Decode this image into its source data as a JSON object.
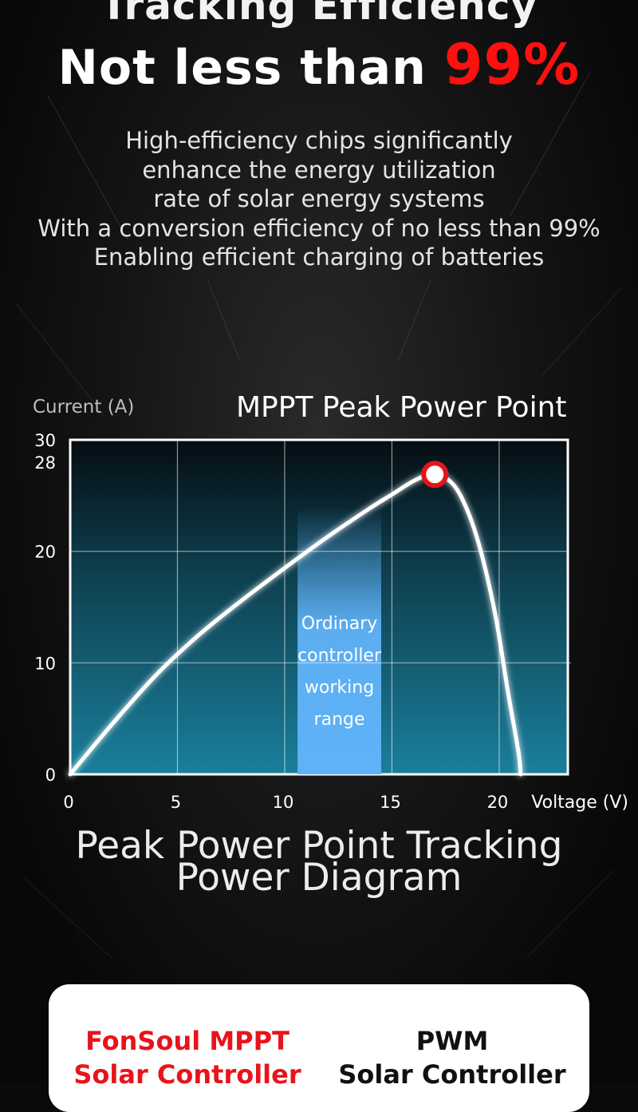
{
  "header": {
    "cut_text": "Tracking Efficiency",
    "headline_prefix": "Not less than ",
    "headline_highlight": "99%"
  },
  "description": [
    "High-efficiency chips significantly",
    "enhance the energy utilization",
    "rate of solar energy systems",
    "With a conversion efficiency of no less than 99%",
    "Enabling efficient charging of batteries"
  ],
  "chart_data": {
    "type": "line",
    "title": "MPPT Peak Power Point",
    "ylabel": "Current (A)",
    "xlabel": "Voltage (V)",
    "xlim": [
      0,
      23.2
    ],
    "ylim": [
      0,
      30
    ],
    "x_ticks": [
      0,
      5,
      10,
      15,
      20
    ],
    "y_ticks": [
      0,
      10,
      20,
      28,
      30
    ],
    "grid": true,
    "series": [
      {
        "x": [
          0,
          2,
          4,
          6,
          8,
          10,
          12,
          14,
          15,
          16,
          16.8,
          17.5,
          18.2,
          19,
          19.8,
          20.4,
          20.9,
          21.0
        ],
        "y": [
          0,
          4.6,
          8.9,
          12.5,
          15.6,
          18.5,
          21.3,
          23.9,
          25.1,
          26.3,
          26.9,
          26.6,
          25.0,
          21.0,
          14.5,
          7.5,
          2.0,
          0
        ]
      }
    ],
    "annotations": [
      {
        "type": "point",
        "label": "MPPT Peak Power Point",
        "x": 17.0,
        "y": 26.9,
        "color": "#e4141b"
      },
      {
        "type": "band",
        "label": "Ordinary controller working range",
        "x_range": [
          10.6,
          14.5
        ],
        "color": "#5fb2f7"
      }
    ],
    "band_label_lines": [
      "Ordinary",
      "controller",
      "working",
      "range"
    ]
  },
  "footer": {
    "title_line1": "Peak Power Point Tracking",
    "title_line2": "Power Diagram"
  },
  "comparison": {
    "mppt_line1": "FonSoul MPPT",
    "mppt_line2": "Solar Controller",
    "pwm_line1": "PWM",
    "pwm_line2": "Solar Controller"
  },
  "colors": {
    "highlight_red": "#ff1010",
    "plot_top": "#050d12",
    "plot_bottom": "#1a7f9c",
    "band": "#5fb2f7",
    "curve": "#ffffff"
  }
}
